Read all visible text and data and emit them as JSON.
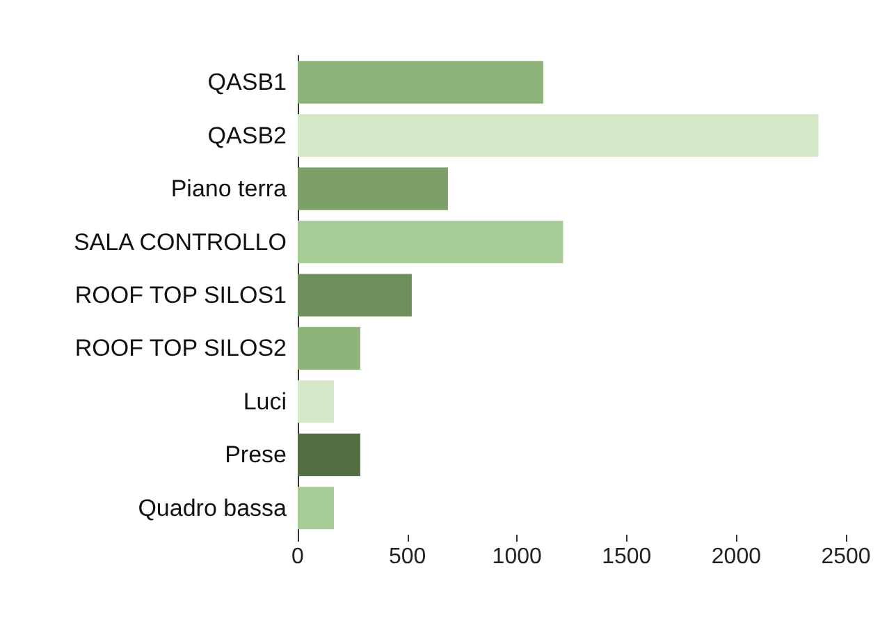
{
  "chart_data": {
    "type": "bar",
    "orientation": "horizontal",
    "categories": [
      "QASB1",
      "QASB2",
      "Piano terra",
      "SALA CONTROLLO",
      "ROOF TOP SILOS1",
      "ROOF TOP SILOS2",
      "Luci",
      "Prese",
      "Quadro bassa"
    ],
    "values": [
      1120,
      2375,
      685,
      1210,
      520,
      285,
      165,
      285,
      165
    ],
    "colors": [
      "#8db27a",
      "#d4e8c8",
      "#7da068",
      "#a8cc96",
      "#6e8f5c",
      "#8db27a",
      "#d4e8c8",
      "#556f45",
      "#a8cc96"
    ],
    "xlim": [
      0,
      2500
    ],
    "xticks": [
      0,
      500,
      1000,
      1500,
      2000,
      2500
    ]
  }
}
